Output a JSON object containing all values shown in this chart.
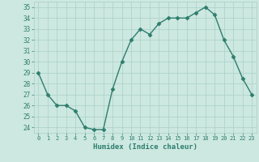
{
  "x": [
    0,
    1,
    2,
    3,
    4,
    5,
    6,
    7,
    8,
    9,
    10,
    11,
    12,
    13,
    14,
    15,
    16,
    17,
    18,
    19,
    20,
    21,
    22,
    23
  ],
  "y": [
    29,
    27,
    26,
    26,
    25.5,
    24,
    23.8,
    23.8,
    27.5,
    30,
    32,
    33,
    32.5,
    33.5,
    34,
    34,
    34,
    34.5,
    35,
    34.3,
    32,
    30.5,
    28.5,
    27
  ],
  "line_color": "#2e7d6e",
  "marker": "D",
  "marker_size": 2.5,
  "bg_color": "#cce8e0",
  "grid_color": "#aacfc7",
  "xlabel": "Humidex (Indice chaleur)",
  "ylim": [
    23.5,
    35.5
  ],
  "xlim": [
    -0.5,
    23.5
  ],
  "yticks": [
    24,
    25,
    26,
    27,
    28,
    29,
    30,
    31,
    32,
    33,
    34,
    35
  ],
  "xticks": [
    0,
    1,
    2,
    3,
    4,
    5,
    6,
    7,
    8,
    9,
    10,
    11,
    12,
    13,
    14,
    15,
    16,
    17,
    18,
    19,
    20,
    21,
    22,
    23
  ],
  "xlabel_color": "#2e7d6e",
  "tick_label_color": "#2e7d6e"
}
